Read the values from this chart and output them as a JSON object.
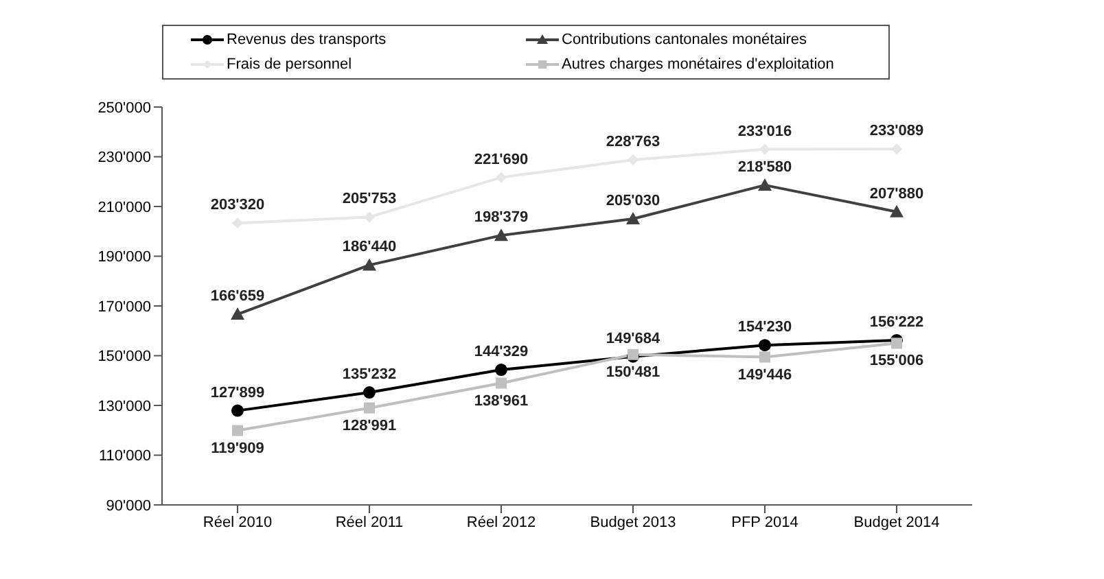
{
  "chart_data": {
    "type": "line",
    "categories": [
      "Réel 2010",
      "Réel 2011",
      "Réel 2012",
      "Budget 2013",
      "PFP 2014",
      "Budget 2014"
    ],
    "series": [
      {
        "name": "Revenus des transports",
        "color": "#000000",
        "marker": "circle",
        "values": [
          127899,
          135232,
          144329,
          149684,
          154230,
          156222
        ],
        "value_labels": [
          "127'899",
          "135'232",
          "144'329",
          "149'684",
          "154'230",
          "156'222"
        ]
      },
      {
        "name": "Contributions cantonales monétaires",
        "color": "#404040",
        "marker": "triangle",
        "values": [
          166659,
          186440,
          198379,
          205030,
          218580,
          207880
        ],
        "value_labels": [
          "166'659",
          "186'440",
          "198'379",
          "205'030",
          "218'580",
          "207'880"
        ]
      },
      {
        "name": "Frais de personnel",
        "color": "#e6e6e6",
        "marker": "diamond",
        "values": [
          203320,
          205753,
          221690,
          228763,
          233016,
          233089
        ],
        "value_labels": [
          "203'320",
          "205'753",
          "221'690",
          "228'763",
          "233'016",
          "233'089"
        ]
      },
      {
        "name": "Autres charges monétaires d'exploitation",
        "color": "#bfbfbf",
        "marker": "square",
        "values": [
          119909,
          128991,
          138961,
          150481,
          149446,
          155006
        ],
        "value_labels": [
          "119'909",
          "128'991",
          "138'961",
          "150'481",
          "149'446",
          "155'006"
        ]
      }
    ],
    "ylim": [
      90000,
      250000
    ],
    "yticks": [
      {
        "value": 90000,
        "label": "90'000"
      },
      {
        "value": 110000,
        "label": "110'000"
      },
      {
        "value": 130000,
        "label": "130'000"
      },
      {
        "value": 150000,
        "label": "150'000"
      },
      {
        "value": 170000,
        "label": "170'000"
      },
      {
        "value": 190000,
        "label": "190'000"
      },
      {
        "value": 210000,
        "label": "210'000"
      },
      {
        "value": 230000,
        "label": "230'000"
      },
      {
        "value": 250000,
        "label": "250'000"
      }
    ],
    "grid": false,
    "legend": "top",
    "line_style": "solid"
  }
}
